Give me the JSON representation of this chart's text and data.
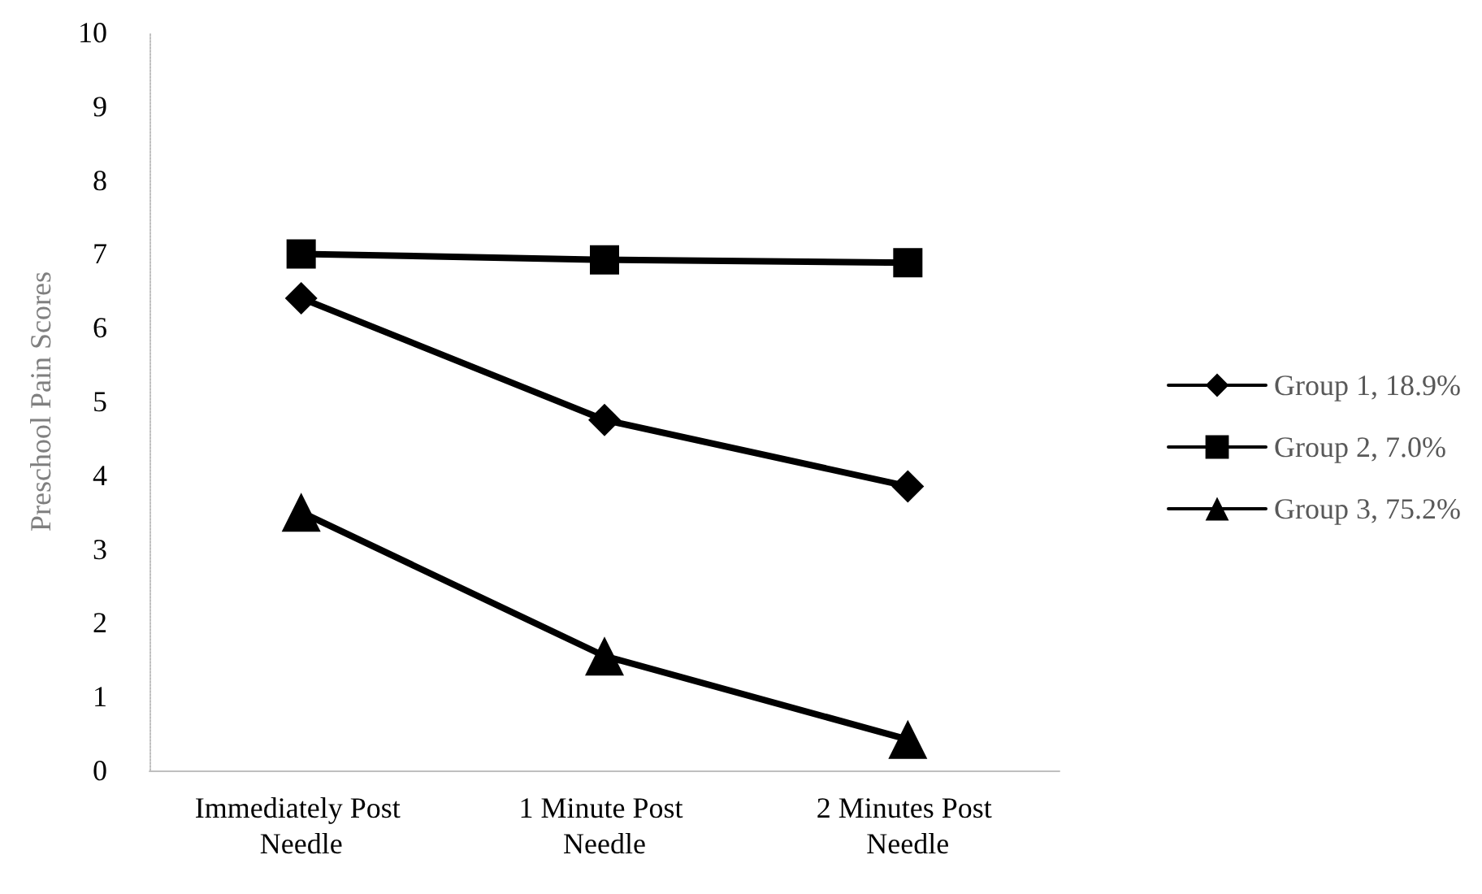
{
  "chart_data": {
    "type": "line",
    "ylabel": "Preschool Pain Scores",
    "categories": [
      "Immediately Post Needle",
      "1 Minute Post Needle",
      "2 Minutes Post Needle"
    ],
    "series": [
      {
        "name": "Group 1, 18.9%",
        "color": "#000000",
        "marker": "diamond",
        "values": [
          6.4,
          4.75,
          3.85
        ]
      },
      {
        "name": "Group 2, 7.0%",
        "color": "#000000",
        "marker": "square",
        "values": [
          7.0,
          6.92,
          6.88
        ]
      },
      {
        "name": "Group 3, 75.2%",
        "color": "#000000",
        "marker": "triangle",
        "values": [
          3.5,
          1.55,
          0.42
        ]
      }
    ],
    "ylim": [
      0,
      10
    ],
    "yticks": [
      0,
      1,
      2,
      3,
      4,
      5,
      6,
      7,
      8,
      9,
      10
    ],
    "grid": false,
    "legend": "right",
    "line_style": "solid"
  }
}
